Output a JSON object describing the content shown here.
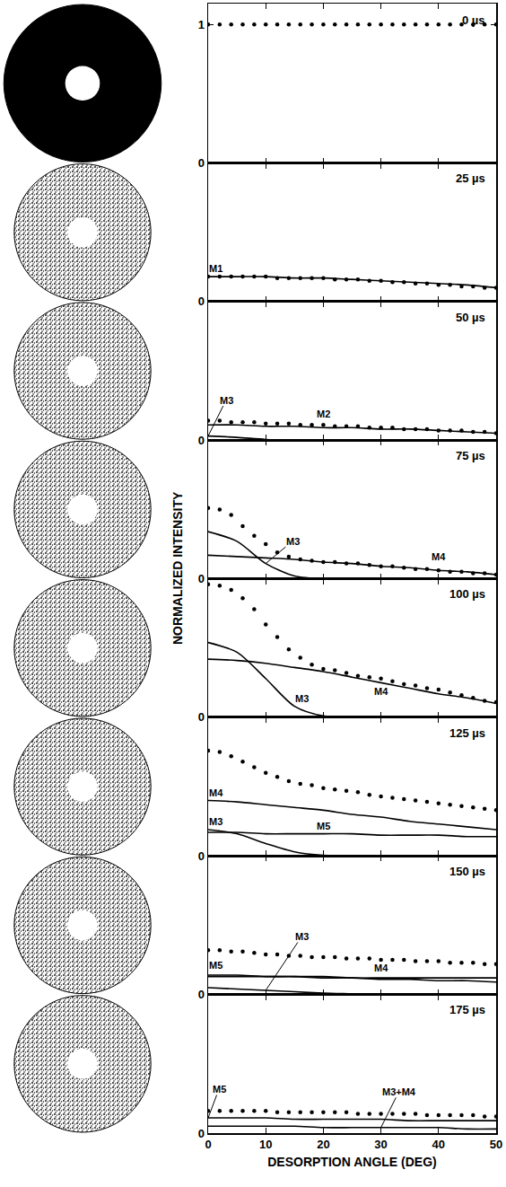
{
  "chart_data": {
    "type": "line",
    "y_label": "NORMALIZED INTENSITY",
    "x_label": "DESORPTION ANGLE (DEG)",
    "xlim": [
      0,
      50
    ],
    "xticks": [
      0,
      10,
      20,
      30,
      40,
      50
    ],
    "grid": false,
    "panels": [
      {
        "title": "0 µs",
        "ylim": [
          0,
          1.15
        ],
        "yticks": [
          0,
          1
        ],
        "tick_labels": "y",
        "series": [
          {
            "type": "scatter",
            "marker": "circle",
            "color": "#000000",
            "x": [
              0,
              2,
              4,
              6,
              8,
              10,
              12,
              14,
              16,
              18,
              20,
              22,
              24,
              26,
              28,
              30,
              32,
              34,
              36,
              38,
              40,
              42,
              44,
              46,
              48,
              50
            ],
            "values": [
              1,
              1,
              1,
              1,
              1,
              1,
              1,
              1,
              1,
              1,
              1,
              1,
              1,
              1,
              1,
              1,
              1,
              1,
              1,
              1,
              1,
              1,
              1,
              1,
              1,
              1
            ]
          }
        ]
      },
      {
        "title": "25 µs",
        "ylim": [
          0,
          1
        ],
        "yticks": [
          0
        ],
        "tick_labels": "y",
        "series": [
          {
            "type": "scatter",
            "marker": "circle",
            "color": "#000000",
            "x": [
              0,
              2,
              4,
              6,
              8,
              10,
              12,
              14,
              16,
              18,
              20,
              22,
              24,
              26,
              28,
              30,
              32,
              34,
              36,
              38,
              40,
              42,
              44,
              46,
              48,
              50
            ],
            "values": [
              0.18,
              0.18,
              0.18,
              0.18,
              0.18,
              0.18,
              0.17,
              0.17,
              0.17,
              0.17,
              0.17,
              0.16,
              0.16,
              0.16,
              0.15,
              0.15,
              0.14,
              0.14,
              0.13,
              0.13,
              0.12,
              0.12,
              0.11,
              0.11,
              0.1,
              0.1
            ]
          },
          {
            "name": "M1",
            "type": "line",
            "line_style": "solid",
            "color": "#000000",
            "x": [
              0,
              5,
              10,
              15,
              20,
              25,
              30,
              35,
              40,
              45,
              50
            ],
            "values": [
              0.18,
              0.18,
              0.18,
              0.17,
              0.17,
              0.16,
              0.15,
              0.14,
              0.13,
              0.12,
              0.1
            ]
          }
        ]
      },
      {
        "title": "50 µs",
        "ylim": [
          0,
          1
        ],
        "yticks": [
          0
        ],
        "tick_labels": "y",
        "series": [
          {
            "type": "scatter",
            "marker": "circle",
            "color": "#000000",
            "x": [
              0,
              2,
              4,
              6,
              8,
              10,
              12,
              14,
              16,
              18,
              20,
              22,
              24,
              26,
              28,
              30,
              32,
              34,
              36,
              38,
              40,
              42,
              44,
              46,
              48,
              50
            ],
            "values": [
              0.14,
              0.14,
              0.13,
              0.13,
              0.13,
              0.12,
              0.12,
              0.12,
              0.11,
              0.11,
              0.11,
              0.1,
              0.1,
              0.1,
              0.09,
              0.09,
              0.09,
              0.08,
              0.08,
              0.08,
              0.07,
              0.07,
              0.07,
              0.06,
              0.06,
              0.05
            ]
          },
          {
            "name": "M2",
            "type": "line",
            "line_style": "solid",
            "color": "#000000",
            "x": [
              0,
              5,
              10,
              15,
              20,
              25,
              30,
              35,
              40,
              45,
              50
            ],
            "values": [
              0.11,
              0.11,
              0.1,
              0.1,
              0.09,
              0.09,
              0.08,
              0.08,
              0.07,
              0.06,
              0.05
            ]
          },
          {
            "name": "M3",
            "type": "line",
            "line_style": "solid",
            "color": "#000000",
            "x": [
              0,
              5,
              10,
              15
            ],
            "values": [
              0.03,
              0.02,
              0.005,
              0
            ]
          }
        ]
      },
      {
        "title": "75 µs",
        "ylim": [
          0,
          1
        ],
        "yticks": [
          0
        ],
        "tick_labels": "y",
        "series": [
          {
            "type": "scatter",
            "marker": "circle",
            "color": "#000000",
            "x": [
              0,
              2,
              4,
              6,
              8,
              10,
              12,
              14,
              16,
              18,
              20,
              22,
              24,
              26,
              28,
              30,
              32,
              34,
              36,
              38,
              40,
              42,
              44,
              46,
              48,
              50
            ],
            "values": [
              0.51,
              0.5,
              0.46,
              0.38,
              0.31,
              0.25,
              0.19,
              0.16,
              0.14,
              0.13,
              0.12,
              0.12,
              0.11,
              0.11,
              0.1,
              0.09,
              0.09,
              0.08,
              0.07,
              0.07,
              0.06,
              0.05,
              0.05,
              0.04,
              0.04,
              0.03
            ]
          },
          {
            "name": "M3",
            "type": "line",
            "line_style": "solid",
            "color": "#000000",
            "x": [
              0,
              5,
              10,
              15,
              20
            ],
            "values": [
              0.34,
              0.27,
              0.11,
              0.02,
              0
            ]
          },
          {
            "name": "M4",
            "type": "line",
            "line_style": "solid",
            "color": "#000000",
            "x": [
              0,
              5,
              10,
              15,
              20,
              25,
              30,
              35,
              40,
              45,
              50
            ],
            "values": [
              0.17,
              0.16,
              0.15,
              0.14,
              0.12,
              0.11,
              0.09,
              0.08,
              0.06,
              0.05,
              0.03
            ]
          }
        ]
      },
      {
        "title": "100 µs",
        "ylim": [
          0,
          1
        ],
        "yticks": [
          0
        ],
        "tick_labels": "y",
        "series": [
          {
            "type": "scatter",
            "marker": "circle",
            "color": "#000000",
            "x": [
              0,
              2,
              4,
              6,
              8,
              10,
              12,
              14,
              16,
              18,
              20,
              22,
              24,
              26,
              28,
              30,
              32,
              34,
              36,
              38,
              40,
              42,
              44,
              46,
              48,
              50
            ],
            "values": [
              0.96,
              0.95,
              0.92,
              0.86,
              0.78,
              0.67,
              0.58,
              0.49,
              0.43,
              0.38,
              0.35,
              0.34,
              0.32,
              0.3,
              0.29,
              0.28,
              0.26,
              0.24,
              0.23,
              0.21,
              0.2,
              0.18,
              0.16,
              0.14,
              0.12,
              0.11
            ]
          },
          {
            "name": "M3",
            "type": "line",
            "line_style": "solid",
            "color": "#000000",
            "x": [
              0,
              5,
              10,
              15,
              20,
              25
            ],
            "values": [
              0.54,
              0.47,
              0.28,
              0.08,
              0.01,
              0
            ]
          },
          {
            "name": "M4",
            "type": "line",
            "line_style": "solid",
            "color": "#000000",
            "x": [
              0,
              5,
              10,
              15,
              20,
              25,
              30,
              35,
              40,
              45,
              50
            ],
            "values": [
              0.42,
              0.41,
              0.39,
              0.36,
              0.33,
              0.29,
              0.25,
              0.21,
              0.17,
              0.14,
              0.1
            ]
          }
        ]
      },
      {
        "title": "125 µs",
        "ylim": [
          0,
          1
        ],
        "yticks": [
          0
        ],
        "tick_labels": "y",
        "series": [
          {
            "type": "scatter",
            "marker": "circle",
            "color": "#000000",
            "x": [
              0,
              2,
              4,
              6,
              8,
              10,
              12,
              14,
              16,
              18,
              20,
              22,
              24,
              26,
              28,
              30,
              32,
              34,
              36,
              38,
              40,
              42,
              44,
              46,
              48,
              50
            ],
            "values": [
              0.76,
              0.75,
              0.72,
              0.68,
              0.64,
              0.6,
              0.57,
              0.54,
              0.52,
              0.51,
              0.49,
              0.48,
              0.47,
              0.46,
              0.44,
              0.43,
              0.42,
              0.41,
              0.4,
              0.39,
              0.38,
              0.37,
              0.36,
              0.35,
              0.34,
              0.33
            ]
          },
          {
            "name": "M3",
            "type": "line",
            "line_style": "solid",
            "color": "#000000",
            "x": [
              0,
              5,
              10,
              15,
              20,
              25
            ],
            "values": [
              0.19,
              0.16,
              0.09,
              0.03,
              0.005,
              0
            ]
          },
          {
            "name": "M4",
            "type": "line",
            "line_style": "solid",
            "color": "#000000",
            "x": [
              0,
              5,
              10,
              15,
              20,
              25,
              30,
              35,
              40,
              45,
              50
            ],
            "values": [
              0.4,
              0.39,
              0.37,
              0.35,
              0.33,
              0.3,
              0.28,
              0.25,
              0.23,
              0.21,
              0.19
            ]
          },
          {
            "name": "M5",
            "type": "line",
            "line_style": "solid",
            "color": "#000000",
            "x": [
              0,
              5,
              10,
              15,
              20,
              25,
              30,
              35,
              40,
              45,
              50
            ],
            "values": [
              0.17,
              0.17,
              0.16,
              0.16,
              0.16,
              0.16,
              0.15,
              0.15,
              0.15,
              0.14,
              0.14
            ]
          }
        ]
      },
      {
        "title": "150 µs",
        "ylim": [
          0,
          1
        ],
        "yticks": [
          0
        ],
        "tick_labels": "y",
        "series": [
          {
            "type": "scatter",
            "marker": "circle",
            "color": "#000000",
            "x": [
              0,
              2,
              4,
              6,
              8,
              10,
              12,
              14,
              16,
              18,
              20,
              22,
              24,
              26,
              28,
              30,
              32,
              34,
              36,
              38,
              40,
              42,
              44,
              46,
              48,
              50
            ],
            "values": [
              0.32,
              0.32,
              0.31,
              0.31,
              0.3,
              0.29,
              0.29,
              0.28,
              0.28,
              0.27,
              0.27,
              0.27,
              0.26,
              0.26,
              0.26,
              0.25,
              0.25,
              0.25,
              0.24,
              0.24,
              0.24,
              0.23,
              0.23,
              0.23,
              0.22,
              0.22
            ]
          },
          {
            "name": "M3",
            "type": "line",
            "line_style": "solid",
            "color": "#000000",
            "x": [
              0,
              5,
              10,
              15,
              20,
              25,
              30
            ],
            "values": [
              0.05,
              0.04,
              0.03,
              0.02,
              0.01,
              0.005,
              0
            ]
          },
          {
            "name": "M4",
            "type": "line",
            "line_style": "solid",
            "color": "#000000",
            "x": [
              0,
              5,
              10,
              15,
              20,
              25,
              30,
              35,
              40,
              45,
              50
            ],
            "values": [
              0.14,
              0.14,
              0.13,
              0.13,
              0.12,
              0.12,
              0.11,
              0.11,
              0.1,
              0.1,
              0.09
            ]
          },
          {
            "name": "M5",
            "type": "line",
            "line_style": "solid",
            "color": "#000000",
            "x": [
              0,
              5,
              10,
              15,
              20,
              25,
              30,
              35,
              40,
              45,
              50
            ],
            "values": [
              0.13,
              0.13,
              0.13,
              0.13,
              0.13,
              0.12,
              0.12,
              0.12,
              0.12,
              0.12,
              0.12
            ]
          }
        ]
      },
      {
        "title": "175 µs",
        "ylim": [
          0,
          1
        ],
        "yticks": [
          0
        ],
        "series": [
          {
            "type": "scatter",
            "marker": "circle",
            "color": "#000000",
            "x": [
              0,
              2,
              4,
              6,
              8,
              10,
              12,
              14,
              16,
              18,
              20,
              22,
              24,
              26,
              28,
              30,
              32,
              34,
              36,
              38,
              40,
              42,
              44,
              46,
              48,
              50
            ],
            "values": [
              0.16,
              0.16,
              0.16,
              0.16,
              0.16,
              0.16,
              0.15,
              0.15,
              0.15,
              0.15,
              0.15,
              0.15,
              0.15,
              0.14,
              0.14,
              0.14,
              0.14,
              0.14,
              0.14,
              0.13,
              0.13,
              0.13,
              0.13,
              0.13,
              0.12,
              0.12
            ]
          },
          {
            "name": "M5",
            "type": "line",
            "line_style": "solid",
            "color": "#000000",
            "x": [
              0,
              5,
              10,
              15,
              20,
              25,
              30,
              35,
              40,
              45,
              50
            ],
            "values": [
              0.11,
              0.11,
              0.11,
              0.1,
              0.1,
              0.1,
              0.1,
              0.09,
              0.09,
              0.09,
              0.09
            ]
          },
          {
            "name": "M3+M4",
            "type": "line",
            "line_style": "solid",
            "color": "#000000",
            "x": [
              0,
              5,
              10,
              15,
              20,
              25,
              30,
              35,
              40,
              45,
              50
            ],
            "values": [
              0.05,
              0.05,
              0.05,
              0.05,
              0.04,
              0.04,
              0.04,
              0.04,
              0.04,
              0.03,
              0.03
            ]
          }
        ]
      }
    ]
  }
}
